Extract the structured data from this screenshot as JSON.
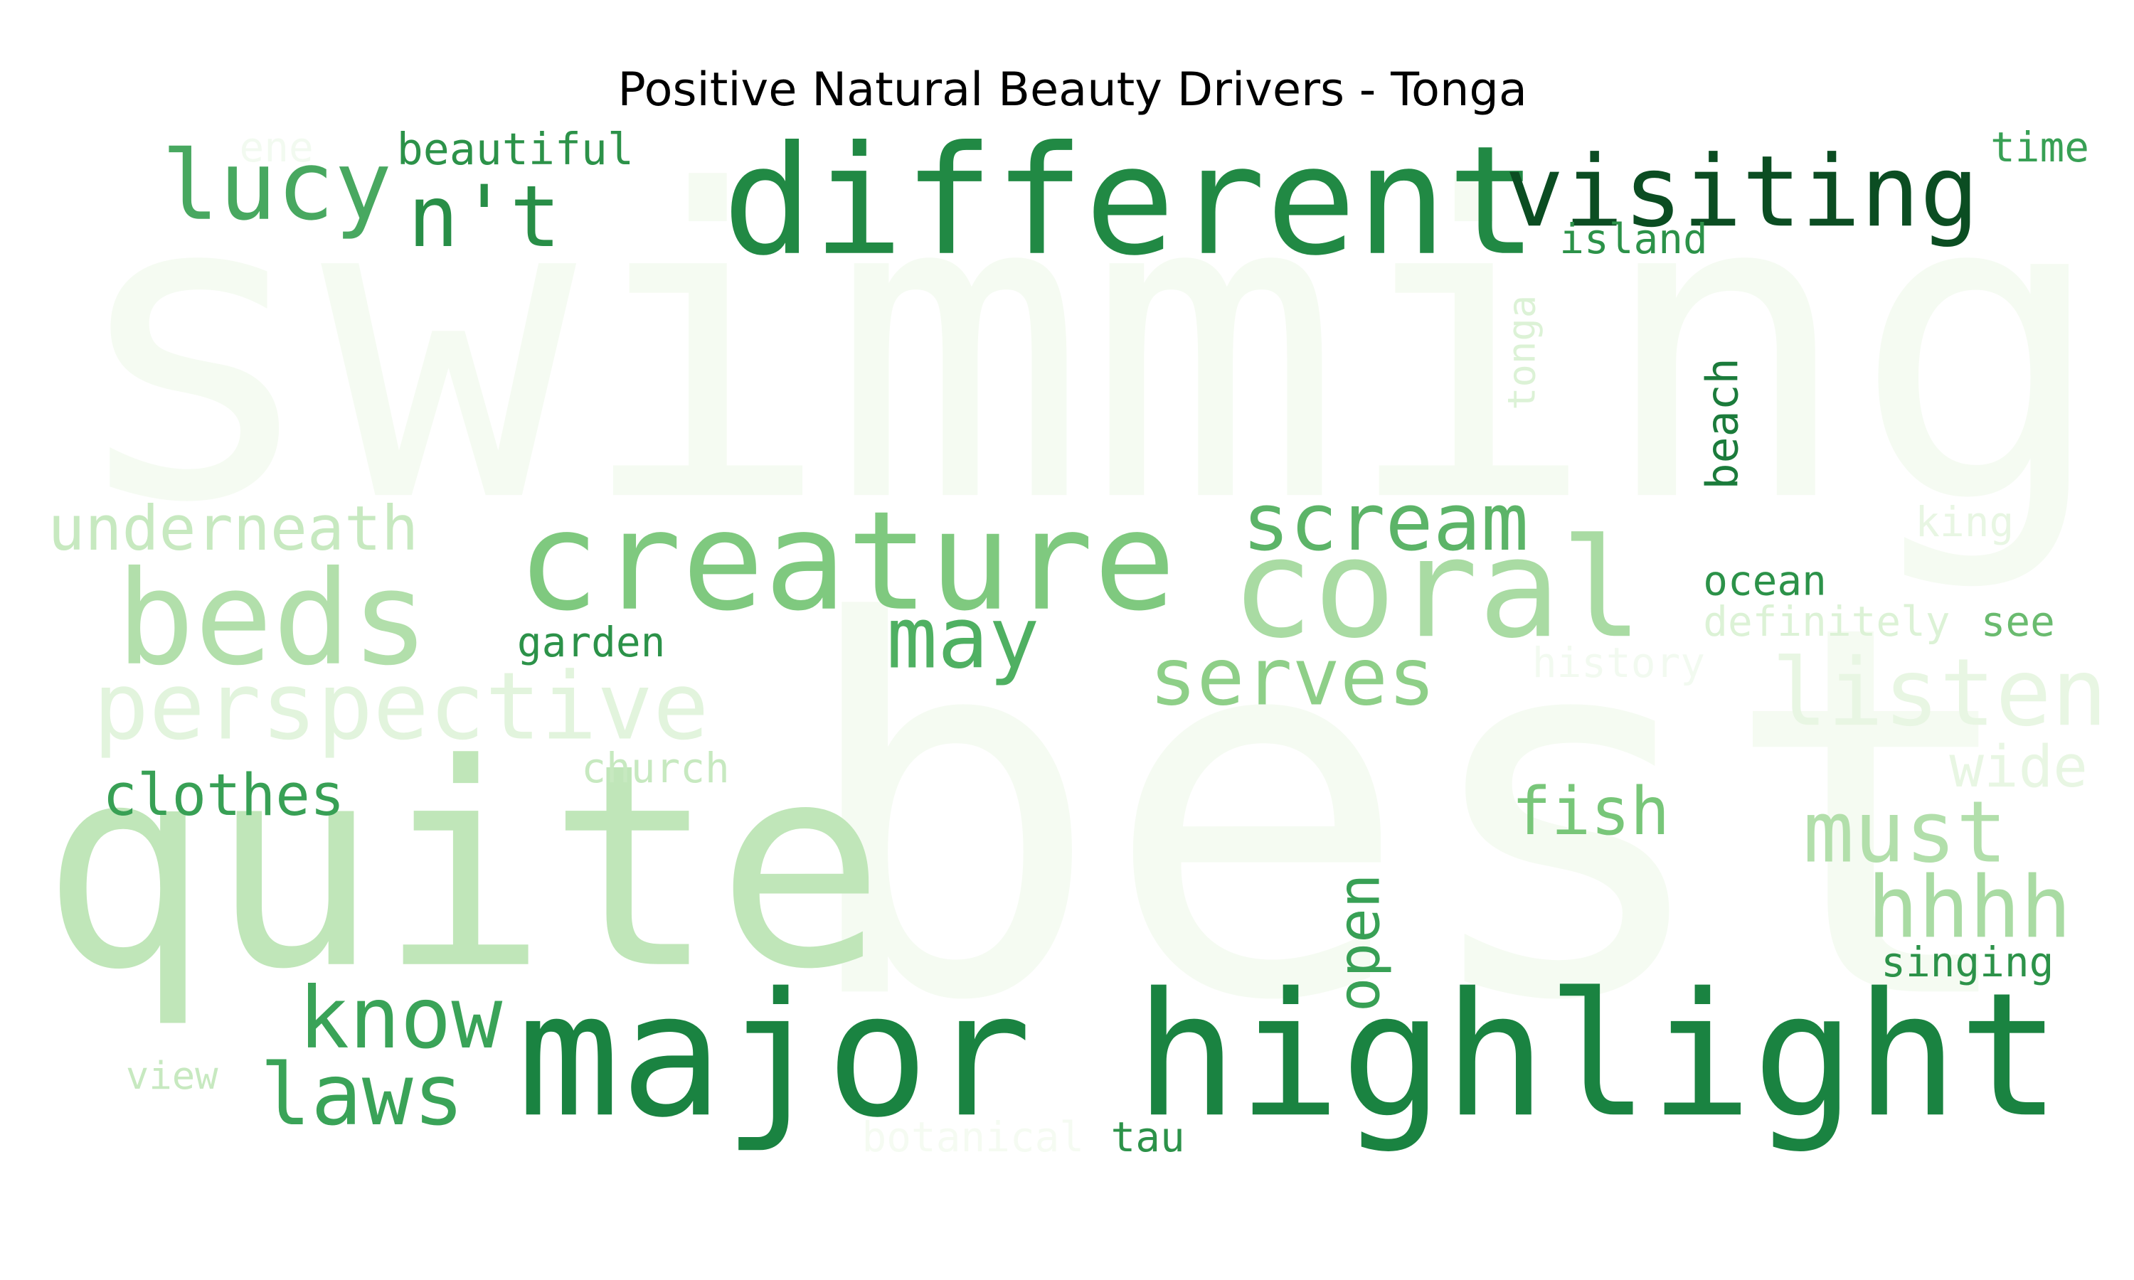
{
  "chart_data": {
    "type": "wordcloud",
    "title": "Positive Natural Beauty Drivers - Tonga",
    "colormap": "Greens",
    "background": "#ffffff",
    "words": [
      {
        "text": "swimming",
        "color": "#f5fbf2"
      },
      {
        "text": "best",
        "color": "#f5fbf2"
      },
      {
        "text": "quite",
        "color": "#c0e6b9"
      },
      {
        "text": "major highlight",
        "color": "#1a8341"
      },
      {
        "text": "different",
        "color": "#218944"
      },
      {
        "text": "creature",
        "color": "#7fc97f"
      },
      {
        "text": "coral",
        "color": "#a9dba3"
      },
      {
        "text": "beds",
        "color": "#b2dfab"
      },
      {
        "text": "visiting",
        "color": "#0b4d22"
      },
      {
        "text": "perspective",
        "color": "#e2f4dd"
      },
      {
        "text": "scream",
        "color": "#5cb468"
      },
      {
        "text": "lucy",
        "color": "#48a860"
      },
      {
        "text": "listen",
        "color": "#e8f6e3"
      },
      {
        "text": "n't",
        "color": "#288e47"
      },
      {
        "text": "may",
        "color": "#4fb062"
      },
      {
        "text": "serves",
        "color": "#8ecf88"
      },
      {
        "text": "underneath",
        "color": "#c7e9c0"
      },
      {
        "text": "know",
        "color": "#3aa358"
      },
      {
        "text": "laws",
        "color": "#3aa358"
      },
      {
        "text": "hhhh",
        "color": "#a9dba3"
      },
      {
        "text": "must",
        "color": "#b2dfab"
      },
      {
        "text": "clothes",
        "color": "#38a055"
      },
      {
        "text": "fish",
        "color": "#78c679"
      },
      {
        "text": "open",
        "color": "#38a055"
      },
      {
        "text": "wide",
        "color": "#e8f6e3"
      },
      {
        "text": "beautiful",
        "color": "#2c9249"
      },
      {
        "text": "garden",
        "color": "#2c9249"
      },
      {
        "text": "church",
        "color": "#c7e9c0"
      },
      {
        "text": "ocean",
        "color": "#2c9249"
      },
      {
        "text": "definitely",
        "color": "#dcf2d6"
      },
      {
        "text": "see",
        "color": "#6abb6f"
      },
      {
        "text": "beach",
        "color": "#1b7b3b"
      },
      {
        "text": "tonga",
        "color": "#dcf2d6"
      },
      {
        "text": "island",
        "color": "#2c9249"
      },
      {
        "text": "time",
        "color": "#38a055"
      },
      {
        "text": "king",
        "color": "#e8f6e3"
      },
      {
        "text": "history",
        "color": "#f2faf0"
      },
      {
        "text": "singing",
        "color": "#2c9249"
      },
      {
        "text": "view",
        "color": "#c7e9c0"
      },
      {
        "text": "botanical",
        "color": "#f5fbf2"
      },
      {
        "text": "tau",
        "color": "#2c9249"
      },
      {
        "text": "ene",
        "color": "#f2faf0"
      }
    ]
  }
}
